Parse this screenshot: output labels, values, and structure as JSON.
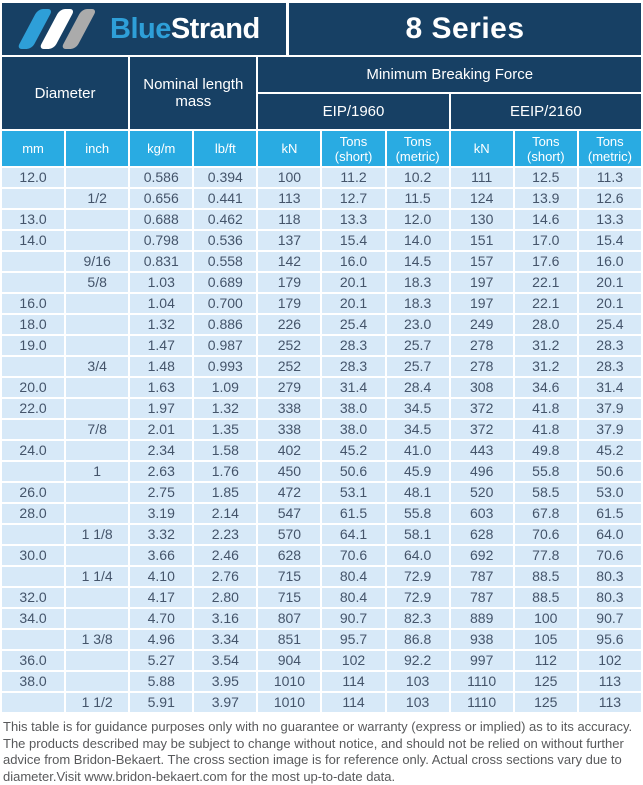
{
  "banner": {
    "logo": {
      "blue": "Blue",
      "strand": "Strand",
      "stripe_colors": [
        "#2E9FD8",
        "#FFFFFF",
        "#ABABAB"
      ]
    },
    "series_title": "8 Series"
  },
  "colors": {
    "navy": "#174064",
    "cyan": "#29ABE2",
    "row_background": "#D7E9F8",
    "data_text": "#44546A",
    "footer_text": "#58595B"
  },
  "table": {
    "group_headers": {
      "diameter": "Diameter",
      "nominal_length_mass": "Nominal length mass",
      "min_breaking_force": "Minimum Breaking Force",
      "eip": "EIP/1960",
      "eeip": "EEIP/2160"
    },
    "unit_headers": [
      "mm",
      "inch",
      "kg/m",
      "lb/ft",
      "kN",
      "Tons (short)",
      "Tons (metric)",
      "kN",
      "Tons (short)",
      "Tons (metric)"
    ],
    "column_keys": [
      "diameter-mm",
      "diameter-inch",
      "mass-kgm",
      "mass-lbft",
      "eip-kn",
      "eip-tons-short",
      "eip-tons-metric",
      "eeip-kn",
      "eeip-tons-short",
      "eeip-tons-metric"
    ],
    "rows": [
      [
        "12.0",
        "",
        "0.586",
        "0.394",
        "100",
        "11.2",
        "10.2",
        "111",
        "12.5",
        "11.3"
      ],
      [
        "",
        "1/2",
        "0.656",
        "0.441",
        "113",
        "12.7",
        "11.5",
        "124",
        "13.9",
        "12.6"
      ],
      [
        "13.0",
        "",
        "0.688",
        "0.462",
        "118",
        "13.3",
        "12.0",
        "130",
        "14.6",
        "13.3"
      ],
      [
        "14.0",
        "",
        "0.798",
        "0.536",
        "137",
        "15.4",
        "14.0",
        "151",
        "17.0",
        "15.4"
      ],
      [
        "",
        "9/16",
        "0.831",
        "0.558",
        "142",
        "16.0",
        "14.5",
        "157",
        "17.6",
        "16.0"
      ],
      [
        "",
        "5/8",
        "1.03",
        "0.689",
        "179",
        "20.1",
        "18.3",
        "197",
        "22.1",
        "20.1"
      ],
      [
        "16.0",
        "",
        "1.04",
        "0.700",
        "179",
        "20.1",
        "18.3",
        "197",
        "22.1",
        "20.1"
      ],
      [
        "18.0",
        "",
        "1.32",
        "0.886",
        "226",
        "25.4",
        "23.0",
        "249",
        "28.0",
        "25.4"
      ],
      [
        "19.0",
        "",
        "1.47",
        "0.987",
        "252",
        "28.3",
        "25.7",
        "278",
        "31.2",
        "28.3"
      ],
      [
        "",
        "3/4",
        "1.48",
        "0.993",
        "252",
        "28.3",
        "25.7",
        "278",
        "31.2",
        "28.3"
      ],
      [
        "20.0",
        "",
        "1.63",
        "1.09",
        "279",
        "31.4",
        "28.4",
        "308",
        "34.6",
        "31.4"
      ],
      [
        "22.0",
        "",
        "1.97",
        "1.32",
        "338",
        "38.0",
        "34.5",
        "372",
        "41.8",
        "37.9"
      ],
      [
        "",
        "7/8",
        "2.01",
        "1.35",
        "338",
        "38.0",
        "34.5",
        "372",
        "41.8",
        "37.9"
      ],
      [
        "24.0",
        "",
        "2.34",
        "1.58",
        "402",
        "45.2",
        "41.0",
        "443",
        "49.8",
        "45.2"
      ],
      [
        "",
        "1",
        "2.63",
        "1.76",
        "450",
        "50.6",
        "45.9",
        "496",
        "55.8",
        "50.6"
      ],
      [
        "26.0",
        "",
        "2.75",
        "1.85",
        "472",
        "53.1",
        "48.1",
        "520",
        "58.5",
        "53.0"
      ],
      [
        "28.0",
        "",
        "3.19",
        "2.14",
        "547",
        "61.5",
        "55.8",
        "603",
        "67.8",
        "61.5"
      ],
      [
        "",
        "1 1/8",
        "3.32",
        "2.23",
        "570",
        "64.1",
        "58.1",
        "628",
        "70.6",
        "64.0"
      ],
      [
        "30.0",
        "",
        "3.66",
        "2.46",
        "628",
        "70.6",
        "64.0",
        "692",
        "77.8",
        "70.6"
      ],
      [
        "",
        "1 1/4",
        "4.10",
        "2.76",
        "715",
        "80.4",
        "72.9",
        "787",
        "88.5",
        "80.3"
      ],
      [
        "32.0",
        "",
        "4.17",
        "2.80",
        "715",
        "80.4",
        "72.9",
        "787",
        "88.5",
        "80.3"
      ],
      [
        "34.0",
        "",
        "4.70",
        "3.16",
        "807",
        "90.7",
        "82.3",
        "889",
        "100",
        "90.7"
      ],
      [
        "",
        "1 3/8",
        "4.96",
        "3.34",
        "851",
        "95.7",
        "86.8",
        "938",
        "105",
        "95.6"
      ],
      [
        "36.0",
        "",
        "5.27",
        "3.54",
        "904",
        "102",
        "92.2",
        "997",
        "112",
        "102"
      ],
      [
        "38.0",
        "",
        "5.88",
        "3.95",
        "1010",
        "114",
        "103",
        "1110",
        "125",
        "113"
      ],
      [
        "",
        "1 1/2",
        "5.91",
        "3.97",
        "1010",
        "114",
        "103",
        "1110",
        "125",
        "113"
      ]
    ]
  },
  "footer": {
    "disclaimer": "This table is for guidance purposes only with no guarantee or warranty (express or implied) as to its accuracy. The products described may be subject to change without notice, and should not be relied on without further advice from Bridon-Bekaert. The cross section image is for reference only. Actual cross sections vary due to diameter.Visit www.bridon-bekaert.com for the most up-to-date data."
  }
}
